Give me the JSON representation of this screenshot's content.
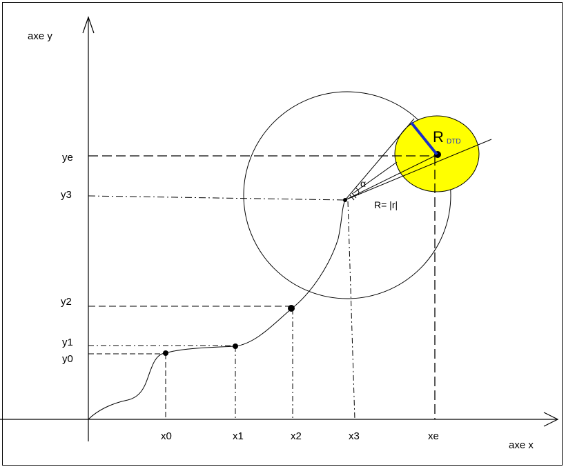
{
  "axes": {
    "x_label": "axe x",
    "y_label": "axe y"
  },
  "x_ticks": [
    "x0",
    "x1",
    "x2",
    "x3",
    "xe"
  ],
  "y_ticks": [
    "y0",
    "y1",
    "y2",
    "y3",
    "ye"
  ],
  "annotations": {
    "radius_label": "R= |r|",
    "angle_label": "α",
    "rdtd_main": "R",
    "rdtd_sub": "DTD"
  },
  "colors": {
    "dtd_circle_fill": "#ffff00",
    "dtd_radius_stroke": "#1a2fc8",
    "line": "#000000"
  }
}
